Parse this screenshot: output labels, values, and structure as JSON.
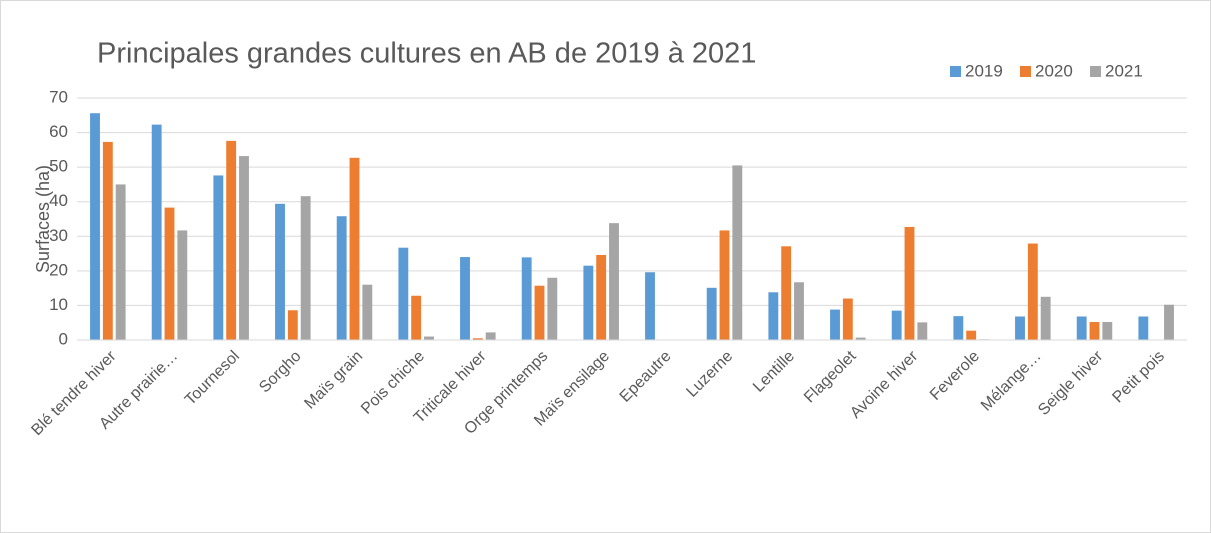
{
  "chart_data": {
    "type": "bar",
    "title": "Principales grandes cultures en AB de 2019 à 2021",
    "y_label": "Surfaces (ha)",
    "categories": [
      "Blé tendre hiver",
      "Autre prairie…",
      "Tournesol",
      "Sorgho",
      "Maïs grain",
      "Pois chiche",
      "Triticale hiver",
      "Orge printemps",
      "Maïs ensilage",
      "Epeautre",
      "Luzerne",
      "Lentille",
      "Flageolet",
      "Avoine hiver",
      "Feverole",
      "Mélange…",
      "Seigle hiver",
      "Petit pois"
    ],
    "series": [
      {
        "name": "2019",
        "color": "#5b9bd5",
        "values": [
          65.6,
          62.3,
          47.6,
          39.4,
          35.8,
          26.7,
          24,
          23.9,
          21.5,
          19.6,
          15.1,
          13.8,
          8.8,
          8.5,
          6.9,
          6.8,
          6.8,
          6.8
        ]
      },
      {
        "name": "2020",
        "color": "#ed7d31",
        "values": [
          57.3,
          38.3,
          57.6,
          8.6,
          52.7,
          12.8,
          0.5,
          15.7,
          24.6,
          0,
          31.7,
          27.1,
          12,
          32.7,
          2.7,
          27.9,
          5.2,
          0
        ]
      },
      {
        "name": "2021",
        "color": "#a5a5a5",
        "values": [
          45,
          31.7,
          53.2,
          41.6,
          16,
          1,
          2.2,
          18,
          33.8,
          0,
          50.5,
          16.7,
          0.7,
          5.1,
          0.2,
          12.5,
          5.2,
          10.2
        ]
      }
    ],
    "ylim": [
      0,
      70
    ],
    "yticks": [
      0,
      10,
      20,
      30,
      40,
      50,
      60,
      70
    ],
    "grid": true,
    "legend": "top-right"
  }
}
